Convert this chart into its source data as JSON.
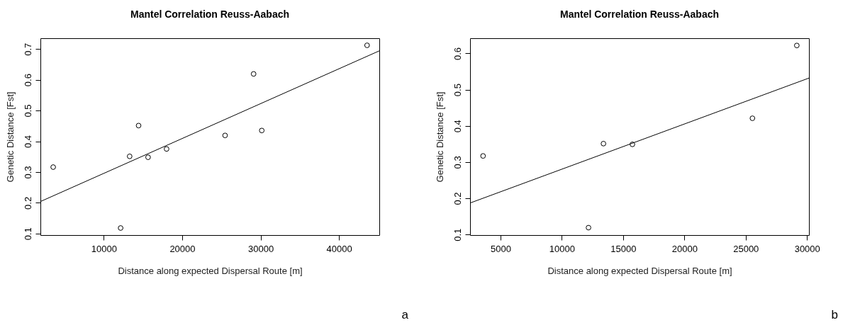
{
  "chart_data": [
    {
      "type": "scatter",
      "title": "Mantel Correlation Reuss-Aabach",
      "xlabel": "Distance along expected Dispersal Route [m]",
      "ylabel": "Genetic Distance [Fst]",
      "xlim": [
        1920,
        45140
      ],
      "ylim": [
        0.095,
        0.735
      ],
      "xticks": [
        10000,
        20000,
        30000,
        40000
      ],
      "yticks": [
        0.1,
        0.2,
        0.3,
        0.4,
        0.5,
        0.6,
        0.7
      ],
      "annotations": [
        "a"
      ],
      "series": [
        {
          "marker": "circle",
          "color": "#000000",
          "x": [
            3550,
            12150,
            13300,
            14440,
            15650,
            18010,
            25470,
            29110,
            30150,
            43580
          ],
          "values": [
            0.316,
            0.118,
            0.351,
            0.451,
            0.348,
            0.375,
            0.419,
            0.619,
            0.435,
            0.712
          ]
        },
        {
          "type": "line",
          "color": "#000000",
          "x": [
            1920,
            45140
          ],
          "values": [
            0.204,
            0.694
          ]
        }
      ]
    },
    {
      "type": "scatter",
      "title": "Mantel Correlation Reuss-Aabach",
      "xlabel": "Distance along expected Dispersal Route [m]",
      "ylabel": "Genetic Distance [Fst]",
      "xlim": [
        2520,
        30160
      ],
      "ylim": [
        0.0985,
        0.642
      ],
      "xticks": [
        5000,
        10000,
        15000,
        20000,
        25000,
        30000
      ],
      "yticks": [
        0.1,
        0.2,
        0.3,
        0.4,
        0.5,
        0.6
      ],
      "annotations": [
        "b"
      ],
      "series": [
        {
          "marker": "circle",
          "color": "#000000",
          "x": [
            3580,
            12180,
            13400,
            15760,
            25550,
            29170
          ],
          "values": [
            0.317,
            0.119,
            0.351,
            0.349,
            0.421,
            0.622
          ]
        },
        {
          "type": "line",
          "color": "#000000",
          "x": [
            2520,
            30160
          ],
          "values": [
            0.187,
            0.532
          ]
        }
      ]
    }
  ]
}
